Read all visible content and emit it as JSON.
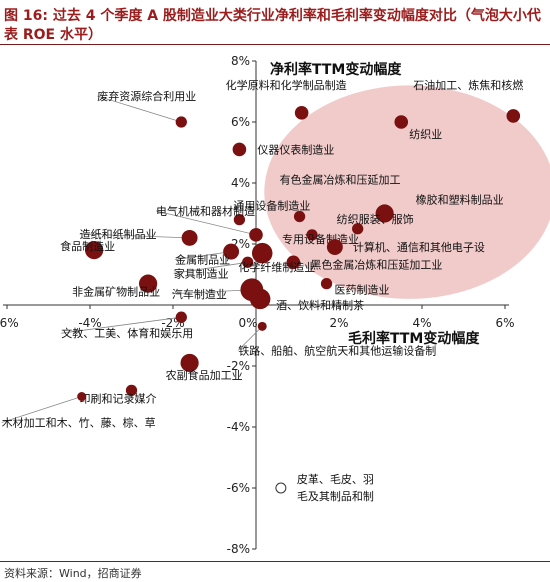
{
  "title": {
    "line1": "图 16:  过去 4 个季度 A 股制造业大类行业净利率和毛利率变动幅度对比（气泡大小代",
    "line2": "表 ROE 水平）"
  },
  "source": "资料来源：Wind，招商证券",
  "chart_data": {
    "type": "scatter",
    "subtype": "bubble",
    "xlabel": "毛利率TTM变动幅度",
    "ylabel": "净利率TTM变动幅度",
    "xlim": [
      -6,
      6
    ],
    "ylim": [
      -8,
      8
    ],
    "x_ticks": [
      "-6%",
      "-4%",
      "-2%",
      "0%",
      "2%",
      "4%",
      "6%"
    ],
    "y_ticks": [
      "8%",
      "6%",
      "4%",
      "2%",
      "0%",
      "-2%",
      "-4%",
      "-6%",
      "-8%"
    ],
    "colors": {
      "bubble": "#7b1010",
      "highlight": "#e8a7a7",
      "leader": "#888888",
      "axis": "#333333"
    },
    "highlight_region": {
      "shape": "circle",
      "cx": 3.7,
      "cy": 3.7,
      "r": 3.5
    },
    "points": [
      {
        "label": "废弃资源综合利用业",
        "x": -1.8,
        "y": 6.0,
        "size": 3
      },
      {
        "label": "化学原料和化学制品制造",
        "x": 1.1,
        "y": 6.3,
        "size": 4
      },
      {
        "label": "石油加工、炼焦和核燃",
        "x": 6.2,
        "y": 6.2,
        "size": 4
      },
      {
        "label": "纺织业",
        "x": 3.5,
        "y": 6.0,
        "size": 4
      },
      {
        "label": "仪器仪表制造业",
        "x": -0.4,
        "y": 5.1,
        "size": 4
      },
      {
        "label": "有色金属冶炼和压延加工",
        "x": 1.05,
        "y": 2.9,
        "size": 3
      },
      {
        "label": "通用设备制造业",
        "x": -0.4,
        "y": 2.8,
        "size": 3
      },
      {
        "label": "橡胶和塑料制品业",
        "x": 3.1,
        "y": 3.0,
        "size": 6
      },
      {
        "label": "电气机械和器材制造",
        "x": 0.0,
        "y": 2.3,
        "size": 4
      },
      {
        "label": "纺织服装、服饰",
        "x": 2.45,
        "y": 2.5,
        "size": 3
      },
      {
        "label": "专用设备制造业",
        "x": 1.35,
        "y": 2.3,
        "size": 3
      },
      {
        "label": "造纸和纸制品业",
        "x": -1.6,
        "y": 2.2,
        "size": 5
      },
      {
        "label": "计算机、通信和其他电子设",
        "x": 1.9,
        "y": 1.9,
        "size": 5
      },
      {
        "label": "金属制品业",
        "x": -0.6,
        "y": 1.75,
        "size": 5
      },
      {
        "label": "黑色金属冶炼和压延加工业",
        "x": 0.9,
        "y": 1.4,
        "size": 4
      },
      {
        "label": "家具制造业",
        "x": -0.2,
        "y": 1.4,
        "size": 3
      },
      {
        "label": "化学纤维制造业",
        "x": 0.15,
        "y": 1.7,
        "size": 7
      },
      {
        "label": "食品制造业",
        "x": -3.9,
        "y": 1.8,
        "size": 6
      },
      {
        "label": "医药制造业",
        "x": 1.7,
        "y": 0.7,
        "size": 3
      },
      {
        "label": "非金属矿物制品业",
        "x": -2.6,
        "y": 0.7,
        "size": 6
      },
      {
        "label": "汽车制造业",
        "x": -0.1,
        "y": 0.5,
        "size": 8
      },
      {
        "label": "酒、饮料和精制茶",
        "x": 0.1,
        "y": 0.2,
        "size": 7
      },
      {
        "label": "文教、工美、体育和娱乐用",
        "x": -1.8,
        "y": -0.4,
        "size": 3
      },
      {
        "label": "铁路、船舶、航空航天和其他运输设备制",
        "x": 0.15,
        "y": -0.7,
        "size": 2
      },
      {
        "label": "农副食品加工业",
        "x": -1.6,
        "y": -1.9,
        "size": 6
      },
      {
        "label": "印刷和记录媒介",
        "x": -3.0,
        "y": -2.8,
        "size": 3
      },
      {
        "label": "木材加工和木、竹、藤、棕、草",
        "x": -4.2,
        "y": -3.0,
        "size": 2
      },
      {
        "label": "皮革、毛皮、羽毛及其制品和制",
        "x": 0.6,
        "y": -6.0,
        "size": 2
      }
    ]
  }
}
